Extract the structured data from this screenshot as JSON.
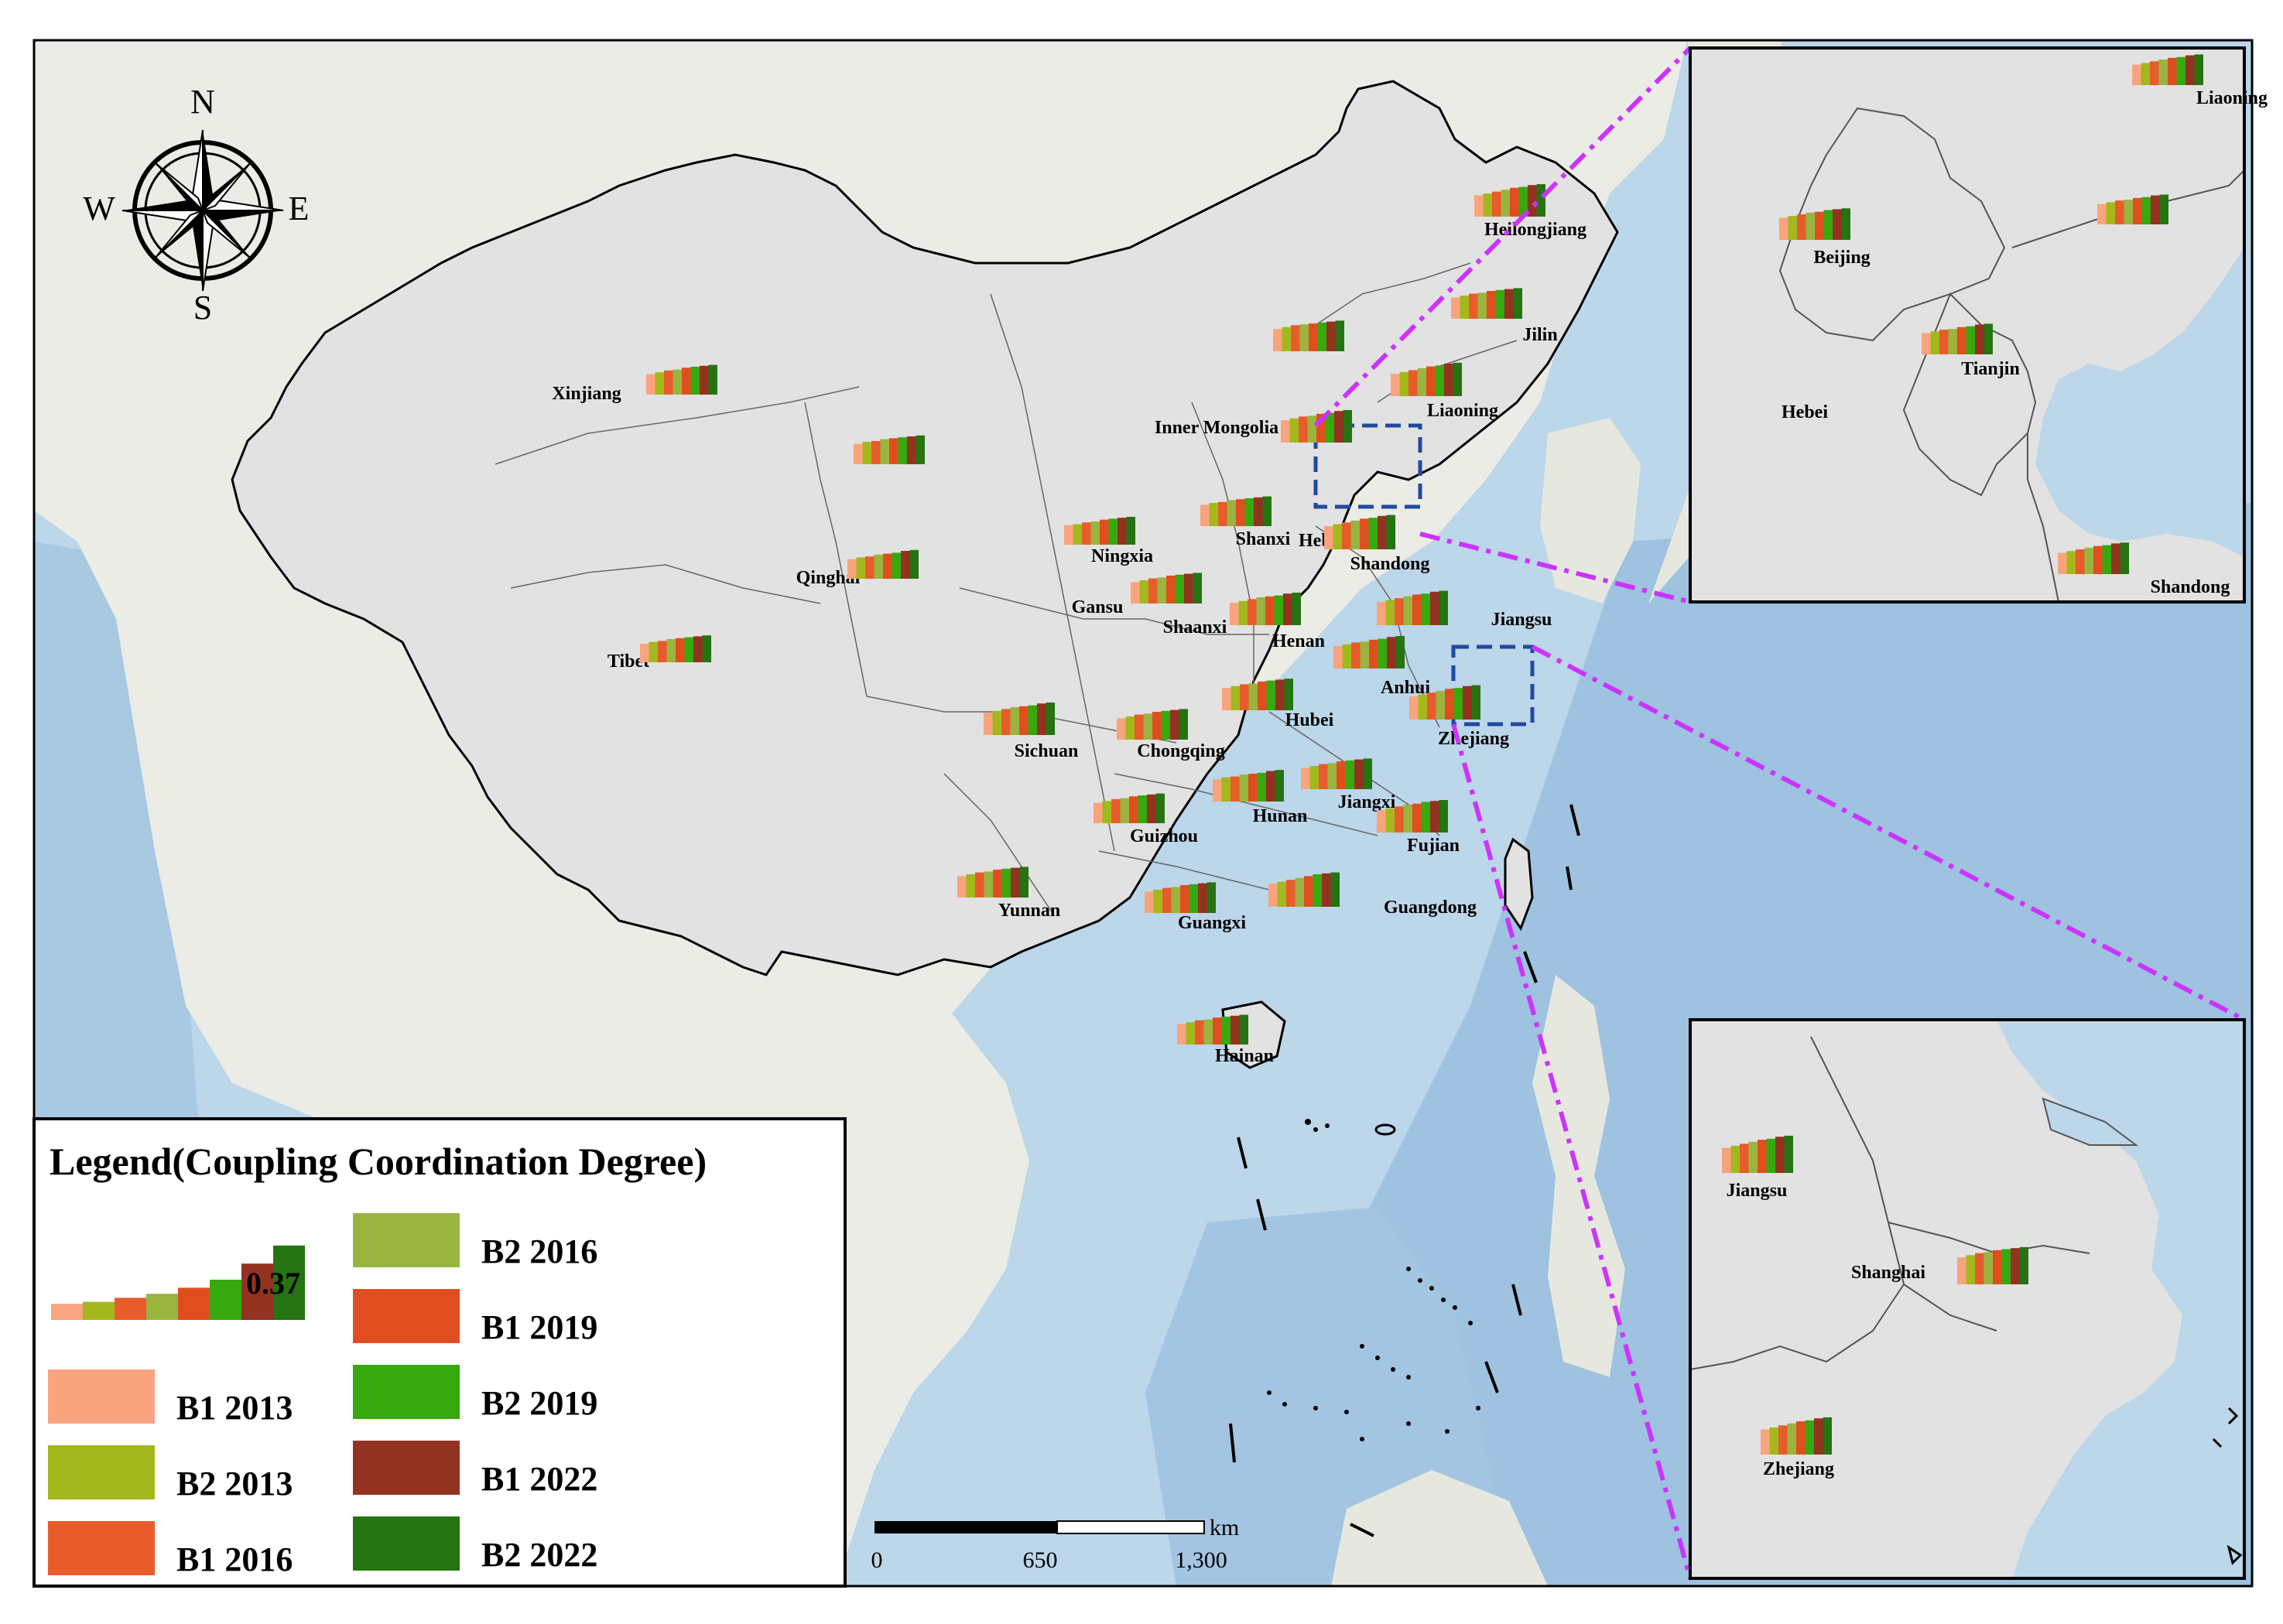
{
  "compass": {
    "n": "N",
    "s": "S",
    "e": "E",
    "w": "W"
  },
  "colors": {
    "B1_2013": "#f9a47e",
    "B2_2013": "#a3b81c",
    "B1_2016": "#e85c2c",
    "B2_2016": "#9ab440",
    "B1_2019": "#e04e20",
    "B2_2019": "#37a80e",
    "B1_2022": "#943221",
    "B2_2022": "#267312",
    "ocean": "#bcd6ea",
    "land_outside": "#ebece5",
    "china": "#e2e2e2",
    "inset_line": "#cc33ff",
    "inset_box": "#1f4aa0"
  },
  "provinces": [
    {
      "name": "Xinjiang",
      "values": [
        0.22,
        0.24,
        0.26,
        0.27,
        0.29,
        0.3,
        0.31,
        0.32
      ]
    },
    {
      "name": "Tibet",
      "values": [
        0.2,
        0.22,
        0.23,
        0.25,
        0.26,
        0.27,
        0.28,
        0.29
      ]
    },
    {
      "name": "Qinghai",
      "values": [
        0.21,
        0.23,
        0.24,
        0.26,
        0.27,
        0.28,
        0.3,
        0.31
      ]
    },
    {
      "name": "Gansu",
      "values": [
        0.22,
        0.24,
        0.25,
        0.27,
        0.28,
        0.29,
        0.3,
        0.31
      ]
    },
    {
      "name": "Ningxia",
      "values": [
        0.21,
        0.22,
        0.24,
        0.25,
        0.27,
        0.28,
        0.29,
        0.3
      ]
    },
    {
      "name": "Inner Mongolia",
      "values": [
        0.24,
        0.26,
        0.28,
        0.29,
        0.3,
        0.31,
        0.32,
        0.33
      ]
    },
    {
      "name": "Heilongjiang",
      "values": [
        0.23,
        0.25,
        0.27,
        0.29,
        0.31,
        0.32,
        0.34,
        0.35
      ]
    },
    {
      "name": "Jilin",
      "values": [
        0.23,
        0.25,
        0.27,
        0.28,
        0.3,
        0.31,
        0.32,
        0.33
      ]
    },
    {
      "name": "Liaoning",
      "values": [
        0.24,
        0.26,
        0.28,
        0.3,
        0.32,
        0.33,
        0.35,
        0.36
      ]
    },
    {
      "name": "Shanxi",
      "values": [
        0.23,
        0.25,
        0.26,
        0.28,
        0.29,
        0.3,
        0.31,
        0.32
      ]
    },
    {
      "name": "Hebei",
      "values": [
        0.24,
        0.26,
        0.28,
        0.29,
        0.31,
        0.32,
        0.34,
        0.35
      ]
    },
    {
      "name": "Shandong",
      "values": [
        0.25,
        0.27,
        0.29,
        0.31,
        0.33,
        0.34,
        0.36,
        0.37
      ]
    },
    {
      "name": "Shaanxi",
      "values": [
        0.23,
        0.25,
        0.27,
        0.28,
        0.3,
        0.31,
        0.32,
        0.33
      ]
    },
    {
      "name": "Henan",
      "values": [
        0.24,
        0.26,
        0.28,
        0.3,
        0.31,
        0.32,
        0.34,
        0.35
      ]
    },
    {
      "name": "Jiangsu",
      "values": [
        0.25,
        0.27,
        0.29,
        0.31,
        0.33,
        0.34,
        0.36,
        0.37
      ]
    },
    {
      "name": "Anhui",
      "values": [
        0.24,
        0.26,
        0.28,
        0.29,
        0.31,
        0.32,
        0.34,
        0.35
      ]
    },
    {
      "name": "Hubei",
      "values": [
        0.24,
        0.26,
        0.28,
        0.29,
        0.31,
        0.32,
        0.33,
        0.34
      ]
    },
    {
      "name": "Sichuan",
      "values": [
        0.24,
        0.26,
        0.28,
        0.3,
        0.31,
        0.32,
        0.34,
        0.35
      ]
    },
    {
      "name": "Chongqing",
      "values": [
        0.23,
        0.25,
        0.27,
        0.28,
        0.3,
        0.31,
        0.32,
        0.33
      ]
    },
    {
      "name": "Zhejiang",
      "values": [
        0.25,
        0.27,
        0.29,
        0.31,
        0.33,
        0.34,
        0.36,
        0.37
      ]
    },
    {
      "name": "Jiangxi",
      "values": [
        0.23,
        0.25,
        0.27,
        0.28,
        0.3,
        0.31,
        0.32,
        0.33
      ]
    },
    {
      "name": "Hunan",
      "values": [
        0.24,
        0.26,
        0.27,
        0.29,
        0.3,
        0.31,
        0.33,
        0.34
      ]
    },
    {
      "name": "Guizhou",
      "values": [
        0.22,
        0.24,
        0.26,
        0.27,
        0.29,
        0.3,
        0.31,
        0.32
      ]
    },
    {
      "name": "Yunnan",
      "values": [
        0.23,
        0.25,
        0.27,
        0.28,
        0.3,
        0.31,
        0.32,
        0.33
      ]
    },
    {
      "name": "Fujian",
      "values": [
        0.24,
        0.26,
        0.28,
        0.3,
        0.31,
        0.33,
        0.34,
        0.35
      ]
    },
    {
      "name": "Guangxi",
      "values": [
        0.23,
        0.25,
        0.27,
        0.28,
        0.3,
        0.31,
        0.32,
        0.33
      ]
    },
    {
      "name": "Guangdong",
      "values": [
        0.25,
        0.27,
        0.29,
        0.31,
        0.33,
        0.35,
        0.36,
        0.37
      ]
    },
    {
      "name": "Hainan",
      "values": [
        0.22,
        0.24,
        0.26,
        0.27,
        0.29,
        0.3,
        0.31,
        0.32
      ]
    }
  ],
  "inset_north": {
    "regions": [
      {
        "name": "Liaoning",
        "values": [
          0.24,
          0.26,
          0.28,
          0.3,
          0.32,
          0.33,
          0.35,
          0.36
        ]
      },
      {
        "name": "Beijing",
        "values": [
          0.26,
          0.28,
          0.3,
          0.32,
          0.33,
          0.35,
          0.36,
          0.37
        ]
      },
      {
        "name": "Tianjin",
        "values": [
          0.25,
          0.27,
          0.29,
          0.3,
          0.32,
          0.33,
          0.35,
          0.36
        ]
      },
      {
        "name": "Hebei",
        "values": [
          0.24,
          0.26,
          0.28,
          0.29,
          0.31,
          0.32,
          0.34,
          0.35
        ]
      },
      {
        "name": "Shandong",
        "values": [
          0.25,
          0.27,
          0.29,
          0.31,
          0.33,
          0.34,
          0.36,
          0.37
        ]
      }
    ]
  },
  "inset_east": {
    "regions": [
      {
        "name": "Jiangsu",
        "values": [
          0.25,
          0.27,
          0.29,
          0.31,
          0.33,
          0.34,
          0.36,
          0.37
        ]
      },
      {
        "name": "Shanghai",
        "values": [
          0.27,
          0.29,
          0.31,
          0.32,
          0.34,
          0.35,
          0.36,
          0.37
        ]
      },
      {
        "name": "Zhejiang",
        "values": [
          0.25,
          0.27,
          0.29,
          0.31,
          0.33,
          0.34,
          0.36,
          0.37
        ]
      }
    ]
  },
  "legend": {
    "title": "Legend(Coupling Coordination Degree)",
    "sample_value": "0.37",
    "sample_values": [
      0.08,
      0.09,
      0.11,
      0.13,
      0.16,
      0.2,
      0.28,
      0.37
    ],
    "items": [
      {
        "label": "B1 2013",
        "color": "#f9a47e"
      },
      {
        "label": "B2 2013",
        "color": "#a3b81c"
      },
      {
        "label": "B1 2016",
        "color": "#e85c2c"
      },
      {
        "label": "B2 2016",
        "color": "#9ab440"
      },
      {
        "label": "B1 2019",
        "color": "#e04e20"
      },
      {
        "label": "B2 2019",
        "color": "#37a80e"
      },
      {
        "label": "B1 2022",
        "color": "#943221"
      },
      {
        "label": "B2 2022",
        "color": "#267312"
      }
    ]
  },
  "scale_bar": {
    "labels": [
      "0",
      "650",
      "1,300"
    ],
    "unit": "km"
  }
}
